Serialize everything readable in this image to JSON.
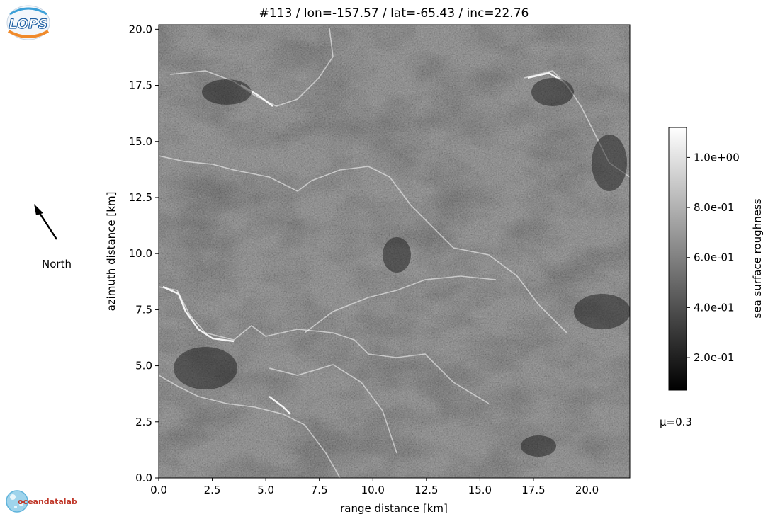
{
  "chart_data": {
    "type": "heatmap",
    "title": "#113 / lon=-157.57 / lat=-65.43 / inc=22.76",
    "xlabel": "range distance [km]",
    "ylabel": "azimuth distance [km]",
    "xlim": [
      0,
      22
    ],
    "ylim": [
      0,
      20.2
    ],
    "xticks": [
      0.0,
      2.5,
      5.0,
      7.5,
      10.0,
      12.5,
      15.0,
      17.5,
      20.0
    ],
    "xtick_labels": [
      "0.0",
      "2.5",
      "5.0",
      "7.5",
      "10.0",
      "12.5",
      "15.0",
      "17.5",
      "20.0"
    ],
    "yticks": [
      0.0,
      2.5,
      5.0,
      7.5,
      10.0,
      12.5,
      15.0,
      17.5,
      20.0
    ],
    "ytick_labels": [
      "0.0",
      "2.5",
      "5.0",
      "7.5",
      "10.0",
      "12.5",
      "15.0",
      "17.5",
      "20.0"
    ],
    "colormap": "gray",
    "colorbar": {
      "label": "sea surface roughness",
      "vmin": 0.07,
      "vmax": 1.12,
      "ticks": [
        0.2,
        0.4,
        0.6,
        0.8,
        1.0
      ],
      "tick_labels": [
        "2.0e-01",
        "4.0e-01",
        "6.0e-01",
        "8.0e-01",
        "1.0e+00"
      ]
    },
    "annotations": {
      "north": "North",
      "mu": "μ=0.3"
    }
  },
  "logos": {
    "top_left": "LOPS",
    "bottom_left": "oceandatalab"
  }
}
